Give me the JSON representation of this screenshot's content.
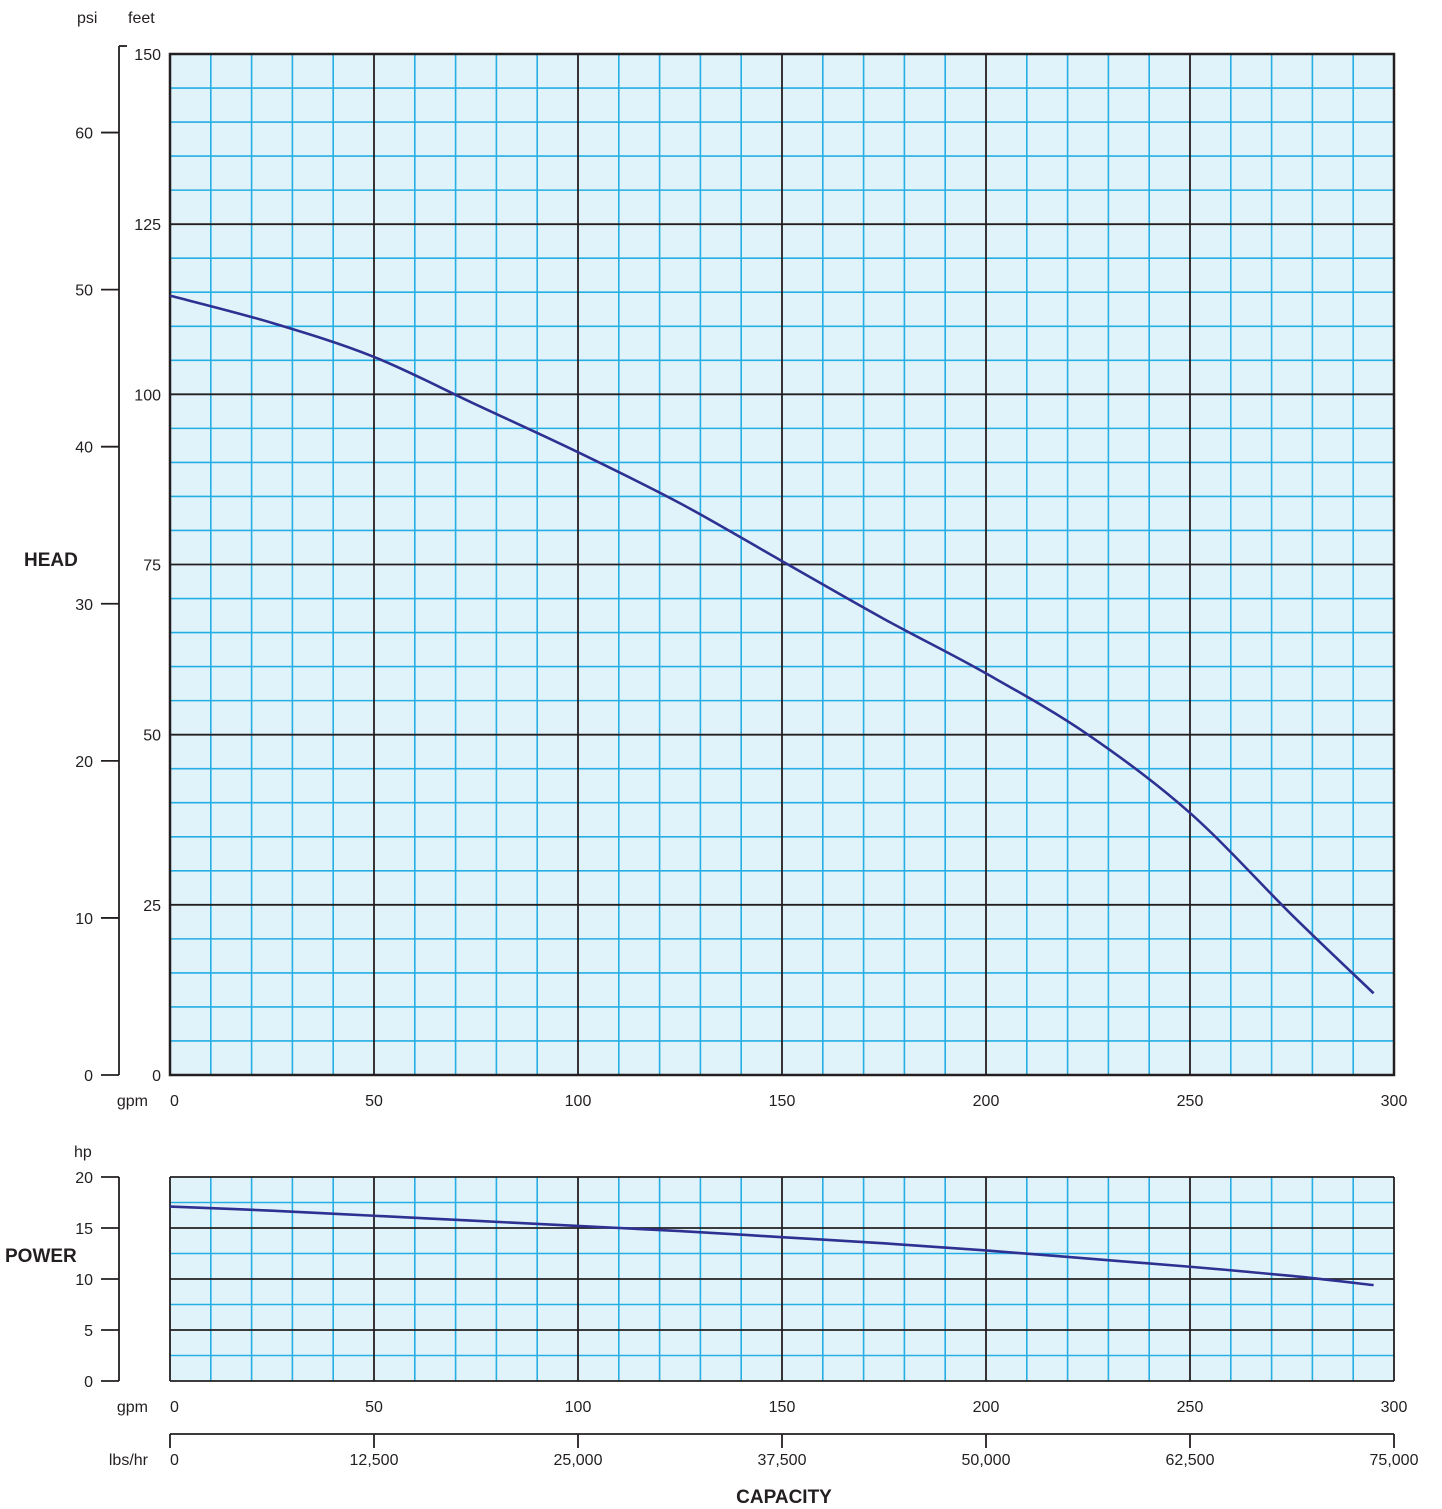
{
  "colors": {
    "plot_bg": "#e1f3fa",
    "minor_grid": "#25aee4",
    "major_grid": "#231f20",
    "curve": "#2e3192",
    "text": "#231f20"
  },
  "labels": {
    "head": "HEAD",
    "power": "POWER",
    "capacity": "CAPACITY",
    "psi": "psi",
    "feet": "feet",
    "gpm_top": "gpm",
    "gpm_bottom": "gpm",
    "hp": "hp",
    "lbs_hr": "lbs/hr"
  },
  "chart_data": [
    {
      "type": "line",
      "xlabel": "CAPACITY",
      "x_unit": "gpm",
      "ylabel": "HEAD",
      "y_unit": "feet",
      "secondary_y_unit": "psi",
      "xlim": [
        0,
        300
      ],
      "ylim": [
        0,
        150
      ],
      "secondary_ylim": [
        0,
        65
      ],
      "x_ticks": [
        "0",
        "50",
        "100",
        "150",
        "200",
        "250",
        "300"
      ],
      "y_ticks": [
        "0",
        "25",
        "50",
        "75",
        "100",
        "125",
        "150"
      ],
      "psi_ticks": [
        "0",
        "10",
        "20",
        "30",
        "40",
        "50",
        "60"
      ],
      "grid": true,
      "series": [
        {
          "x": [
            0,
            25,
            50,
            75,
            100,
            125,
            150,
            175,
            200,
            225,
            250,
            275,
            295
          ],
          "y": [
            114.5,
            110.5,
            105.5,
            98.5,
            91.5,
            84,
            75.5,
            67,
            59,
            50,
            38.5,
            23.5,
            12
          ]
        }
      ]
    },
    {
      "type": "line",
      "ylabel": "POWER",
      "y_unit": "hp",
      "x_unit": "gpm",
      "secondary_x_unit": "lbs/hr",
      "xlim": [
        0,
        300
      ],
      "ylim": [
        0,
        20
      ],
      "secondary_xlim": [
        0,
        75000
      ],
      "x_ticks": [
        "0",
        "50",
        "100",
        "150",
        "200",
        "250",
        "300"
      ],
      "secondary_x_ticks": [
        "0",
        "12,500",
        "25,000",
        "37,500",
        "50,000",
        "62,500",
        "75,000"
      ],
      "y_ticks": [
        "0",
        "5",
        "10",
        "15",
        "20"
      ],
      "grid": true,
      "series": [
        {
          "x": [
            0,
            25,
            50,
            75,
            100,
            125,
            150,
            175,
            200,
            225,
            250,
            275,
            295
          ],
          "y": [
            17.1,
            16.7,
            16.2,
            15.7,
            15.2,
            14.7,
            14.1,
            13.5,
            12.8,
            12.0,
            11.2,
            10.3,
            9.4
          ]
        }
      ]
    }
  ]
}
